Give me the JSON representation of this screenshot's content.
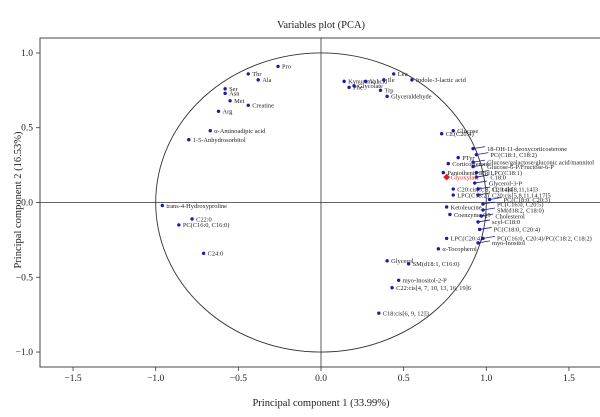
{
  "chart_data": {
    "type": "scatter",
    "title": "Variables plot (PCA)",
    "xlabel": "Principal component 1 (33.99%)",
    "ylabel": "Principal component 2 (16.53%)",
    "xlim": [
      -1.7,
      1.7
    ],
    "ylim": [
      -1.1,
      1.1
    ],
    "xticks": [
      -1.5,
      -1.0,
      -0.5,
      0.0,
      0.5,
      1.0,
      1.5
    ],
    "yticks": [
      -1.0,
      -0.5,
      0.0,
      0.5,
      1.0
    ],
    "xtick_labels": [
      "−1.5",
      "−1.0",
      "−0.5",
      "0.0",
      "0.5",
      "1.0",
      "1.5"
    ],
    "ytick_labels": [
      "−1.0",
      "−0.5",
      "0.0",
      "0.5",
      "1.0"
    ],
    "unit_circle": true,
    "grid": false,
    "colors": {
      "point": "#1a1aa8",
      "highlight": "#e02020",
      "line": "#1a1aa8"
    },
    "points": [
      {
        "label": "Pro",
        "x": -0.26,
        "y": 0.91
      },
      {
        "label": "Thr",
        "x": -0.44,
        "y": 0.86
      },
      {
        "label": "Ala",
        "x": -0.38,
        "y": 0.82
      },
      {
        "label": "Ser",
        "x": -0.58,
        "y": 0.76
      },
      {
        "label": "Asn",
        "x": -0.58,
        "y": 0.73
      },
      {
        "label": "Met",
        "x": -0.55,
        "y": 0.68
      },
      {
        "label": "Creatine",
        "x": -0.44,
        "y": 0.65
      },
      {
        "label": "Arg",
        "x": -0.62,
        "y": 0.61
      },
      {
        "label": "α-Aminoadipic acid",
        "x": -0.67,
        "y": 0.48
      },
      {
        "label": "1-5-Anhydrosorbitol",
        "x": -0.8,
        "y": 0.42
      },
      {
        "label": "trans-4-Hydroxyproline",
        "x": -0.96,
        "y": -0.02
      },
      {
        "label": "C22:0",
        "x": -0.78,
        "y": -0.11
      },
      {
        "label": "PC(C16:0, C16:0)",
        "x": -0.86,
        "y": -0.15
      },
      {
        "label": "C24:0",
        "x": -0.71,
        "y": -0.34
      },
      {
        "label": "Kynurenic.acid",
        "x": 0.14,
        "y": 0.81
      },
      {
        "label": "Glycolate",
        "x": 0.2,
        "y": 0.78
      },
      {
        "label": "Phe",
        "x": 0.17,
        "y": 0.77
      },
      {
        "label": "Val",
        "x": 0.27,
        "y": 0.81
      },
      {
        "label": "Ile",
        "x": 0.38,
        "y": 0.82
      },
      {
        "label": "Leu",
        "x": 0.44,
        "y": 0.86
      },
      {
        "label": "Indole-3-lactic acid",
        "x": 0.55,
        "y": 0.82
      },
      {
        "label": "Trp",
        "x": 0.36,
        "y": 0.75
      },
      {
        "label": "Glyceraldehyde",
        "x": 0.4,
        "y": 0.71
      },
      {
        "label": "Glucose",
        "x": 0.8,
        "y": 0.48
      },
      {
        "label": "CE(C20:4)",
        "x": 0.73,
        "y": 0.46
      },
      {
        "label": "18-OH-11-deoxycorticosterone",
        "x": 0.92,
        "y": 0.36
      },
      {
        "label": "PC(C18:1, C18:2)",
        "x": 0.94,
        "y": 0.32
      },
      {
        "label": "PTyr",
        "x": 0.83,
        "y": 0.3
      },
      {
        "label": "Glucose/galactose/gluconic acid/mannitol",
        "x": 0.92,
        "y": 0.27
      },
      {
        "label": "Corticosterone",
        "x": 0.77,
        "y": 0.26
      },
      {
        "label": "Glucose-6-P/Fructose-6-P",
        "x": 0.92,
        "y": 0.24
      },
      {
        "label": "Pantothenic acid",
        "x": 0.74,
        "y": 0.2
      },
      {
        "label": "LPC(C18:1)",
        "x": 0.94,
        "y": 0.2
      },
      {
        "label": "C18:0",
        "x": 0.94,
        "y": 0.17
      },
      {
        "label": "Glyoxylate",
        "x": 0.76,
        "y": 0.17,
        "highlight": true
      },
      {
        "label": "Glycerol-3-P",
        "x": 0.93,
        "y": 0.13
      },
      {
        "label": "C20:cis[5, 8, 11, 14]4",
        "x": 0.8,
        "y": 0.09
      },
      {
        "label": "C20:cis[8,11,14]3",
        "x": 0.95,
        "y": 0.09
      },
      {
        "label": "LPC(C18:2)",
        "x": 0.8,
        "y": 0.05
      },
      {
        "label": "C20:cis[5,8,11,14,17]5",
        "x": 0.95,
        "y": 0.05
      },
      {
        "label": "PC(C18:0, C20:3)",
        "x": 1.02,
        "y": 0.02
      },
      {
        "label": "PC(C16:0, C20:5)",
        "x": 0.98,
        "y": -0.01
      },
      {
        "label": "Ketoleucine",
        "x": 0.76,
        "y": -0.03
      },
      {
        "label": "SM(d18:2, C18:0)",
        "x": 0.98,
        "y": -0.05
      },
      {
        "label": "Coenzyme Q9",
        "x": 0.78,
        "y": -0.08
      },
      {
        "label": "Cholesterol",
        "x": 0.97,
        "y": -0.09
      },
      {
        "label": "scyl-C18:0",
        "x": 0.95,
        "y": -0.13
      },
      {
        "label": "PC(C18:0, C20:4)",
        "x": 0.96,
        "y": -0.18
      },
      {
        "label": "LPC(C20:4)",
        "x": 0.76,
        "y": -0.24
      },
      {
        "label": "PC(C16:0, C20:4)/PC(C18:2, C18:2)",
        "x": 0.98,
        "y": -0.24
      },
      {
        "label": "α-Tocopherol",
        "x": 0.71,
        "y": -0.31
      },
      {
        "label": "myo-Inositol",
        "x": 0.95,
        "y": -0.27
      },
      {
        "label": "Glycerol",
        "x": 0.4,
        "y": -0.39
      },
      {
        "label": "SM(d18:1, C16:0)",
        "x": 0.53,
        "y": -0.41
      },
      {
        "label": "myo-Inositol-2-P",
        "x": 0.47,
        "y": -0.52
      },
      {
        "label": "C22:cis[4, 7, 10, 13, 16, 19]6",
        "x": 0.43,
        "y": -0.57
      },
      {
        "label": "C18:cis[6, 9, 12]3",
        "x": 0.35,
        "y": -0.74
      }
    ]
  }
}
